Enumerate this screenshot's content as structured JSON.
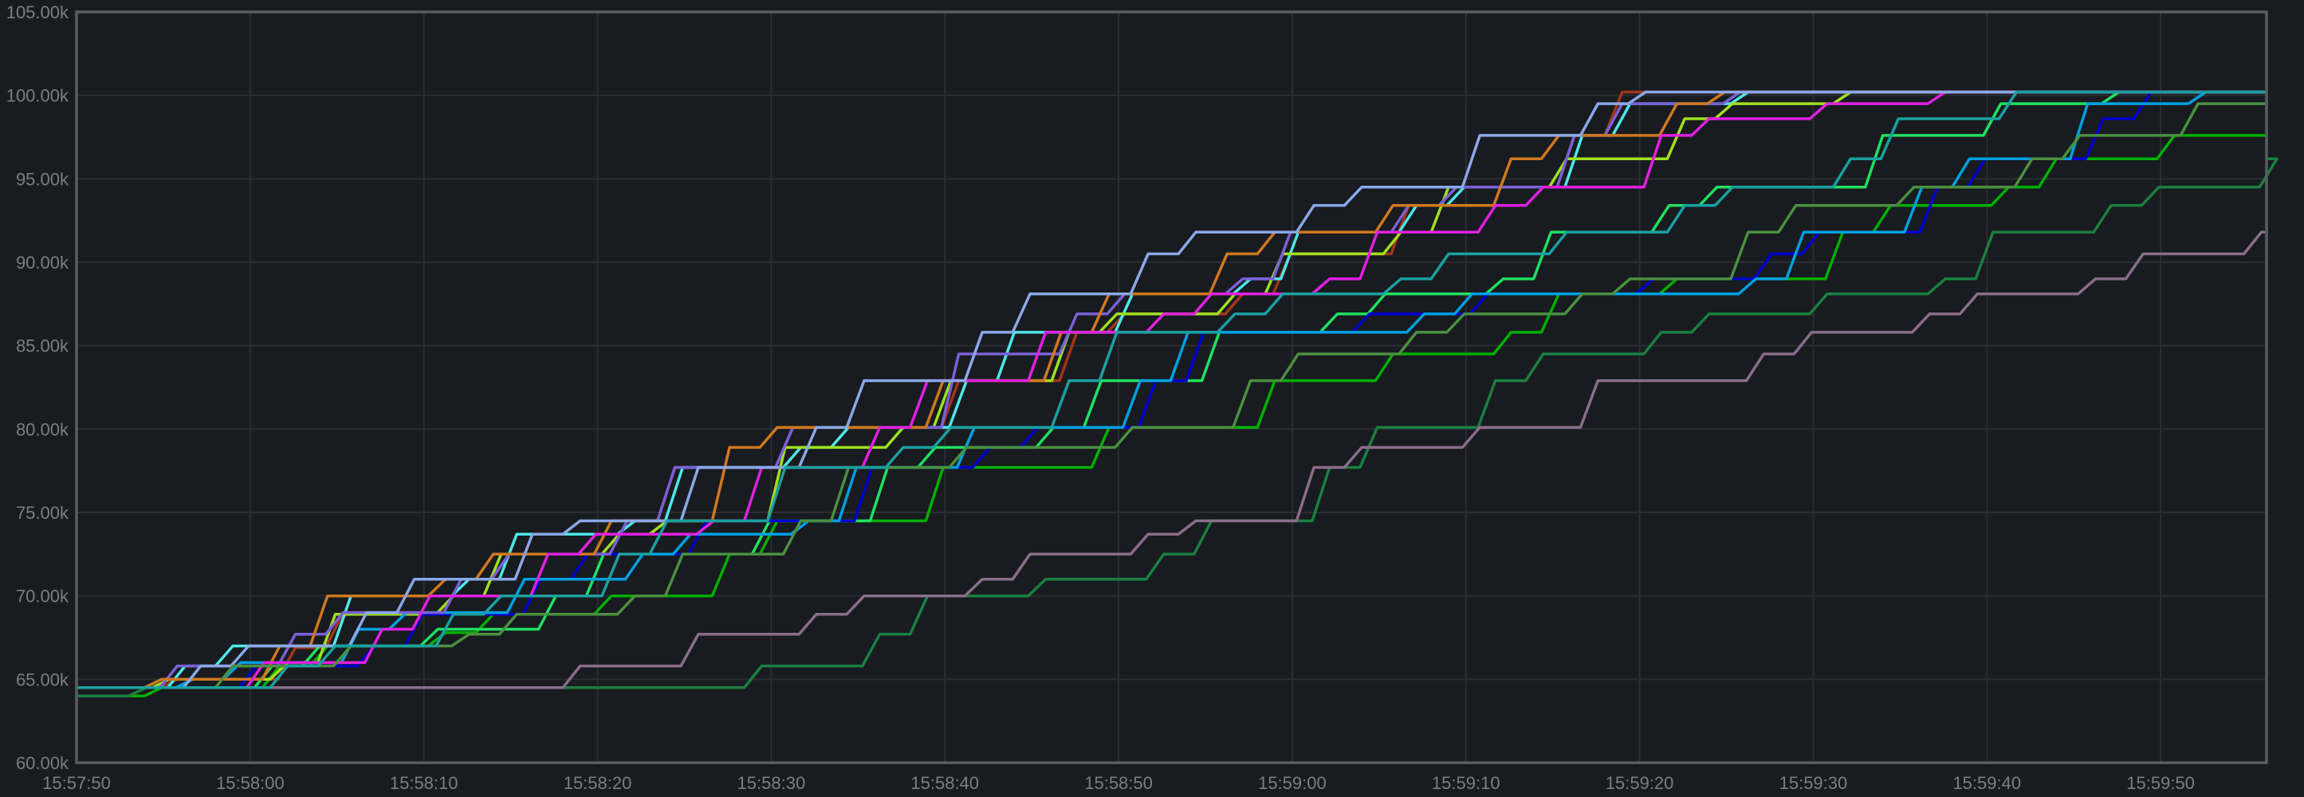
{
  "chart_data": {
    "type": "line",
    "title": "",
    "xlabel": "",
    "ylabel": "",
    "xlim": [
      "15:57:50",
      "15:59:56"
    ],
    "ylim": [
      60000,
      105000
    ],
    "grid": true,
    "legend": "none",
    "line_style": "stepped",
    "y_ticks": [
      "60.00k",
      "65.00k",
      "70.00k",
      "75.00k",
      "80.00k",
      "85.00k",
      "90.00k",
      "95.00k",
      "100.00k",
      "105.00k"
    ],
    "x_ticks": [
      "15:57:50",
      "15:58:00",
      "15:58:10",
      "15:58:20",
      "15:58:30",
      "15:58:40",
      "15:58:50",
      "15:59:00",
      "15:59:10",
      "15:59:20",
      "15:59:30",
      "15:59:40",
      "15:59:50"
    ],
    "x": [
      "15:57:50",
      "15:57:55",
      "15:58:00",
      "15:58:05",
      "15:58:10",
      "15:58:15",
      "15:58:20",
      "15:58:25",
      "15:58:30",
      "15:58:35",
      "15:58:40",
      "15:58:45",
      "15:58:50",
      "15:58:55",
      "15:59:00",
      "15:59:05",
      "15:59:10",
      "15:59:15",
      "15:59:20",
      "15:59:25",
      "15:59:30",
      "15:59:35",
      "15:59:40",
      "15:59:45",
      "15:59:50",
      "15:59:55"
    ],
    "series": [
      {
        "color": "#a0361c",
        "values": [
          64500,
          65000,
          66900,
          69000,
          71000,
          72500,
          74500,
          77700,
          80100,
          80100,
          82900,
          85800,
          86900,
          88100,
          90500,
          93400,
          94500,
          97600,
          100200,
          100200,
          100200,
          100200,
          100200,
          100200,
          100200,
          100200
        ]
      },
      {
        "color": "#00b000",
        "values": [
          64000,
          64500,
          65800,
          67000,
          67800,
          68900,
          70000,
          72500,
          74500,
          74500,
          77700,
          77700,
          80100,
          80100,
          82900,
          84500,
          85800,
          88100,
          89000,
          89000,
          91800,
          93400,
          94500,
          96200,
          97600,
          97600
        ]
      },
      {
        "color": "#1a8040",
        "values": [
          64000,
          64500,
          64500,
          64500,
          64500,
          64500,
          64500,
          64500,
          65800,
          67700,
          70000,
          71000,
          72500,
          74500,
          77700,
          80100,
          82900,
          84500,
          85800,
          86900,
          88100,
          89000,
          91800,
          93400,
          94500,
          96200
        ]
      },
      {
        "color": "#8a6d8a",
        "values": [
          64500,
          64500,
          64500,
          64500,
          64500,
          64500,
          65800,
          67700,
          68900,
          70000,
          71000,
          72500,
          73700,
          74500,
          77700,
          78900,
          80100,
          82900,
          82900,
          84500,
          85800,
          86900,
          88100,
          89000,
          90500,
          91800
        ]
      },
      {
        "color": "#4de8e8",
        "values": [
          64500,
          65800,
          67000,
          70000,
          71000,
          73700,
          74500,
          77700,
          78900,
          80100,
          82900,
          85800,
          88100,
          89000,
          91800,
          93400,
          94500,
          97600,
          99500,
          100200,
          100200,
          100200,
          100200,
          100200,
          100200,
          100200
        ]
      },
      {
        "color": "#a0e020",
        "values": [
          64500,
          65000,
          66000,
          68900,
          70000,
          72500,
          73700,
          74500,
          78900,
          80100,
          82900,
          85800,
          86900,
          88100,
          90500,
          91800,
          94500,
          96200,
          98600,
          99500,
          100200,
          100200,
          100200,
          100200,
          100200,
          100200
        ]
      },
      {
        "color": "#20e060",
        "values": [
          64500,
          64500,
          65800,
          67000,
          68000,
          70000,
          72500,
          72500,
          74500,
          77700,
          78900,
          80100,
          82900,
          85800,
          86900,
          88100,
          89000,
          91800,
          93400,
          94500,
          94500,
          97600,
          99500,
          100200,
          100200,
          100200
        ]
      },
      {
        "color": "#0000d0",
        "values": [
          64500,
          64500,
          65800,
          67000,
          68900,
          71000,
          72500,
          74500,
          74500,
          77700,
          78900,
          80100,
          82900,
          85800,
          85800,
          86900,
          88100,
          88100,
          89000,
          90500,
          91800,
          94500,
          96200,
          98600,
          100200,
          100200
        ]
      },
      {
        "color": "#00a0e0",
        "values": [
          64500,
          65000,
          66000,
          68000,
          69000,
          71000,
          72500,
          73700,
          74500,
          77700,
          80100,
          80100,
          82900,
          85800,
          85800,
          86900,
          88100,
          88100,
          88100,
          89000,
          91800,
          94500,
          96200,
          99500,
          100200,
          100200
        ]
      },
      {
        "color": "#7a60d8",
        "values": [
          64500,
          65800,
          67700,
          69000,
          71000,
          72500,
          74500,
          77700,
          80100,
          80100,
          84500,
          86900,
          88100,
          89000,
          91800,
          93400,
          94500,
          97600,
          99500,
          100200,
          100200,
          100200,
          100200,
          100200,
          100200,
          100200
        ]
      },
      {
        "color": "#d07820",
        "values": [
          64500,
          65000,
          67000,
          70000,
          71000,
          72500,
          74500,
          78900,
          80100,
          80100,
          82900,
          85800,
          88100,
          90500,
          91800,
          93400,
          96200,
          97600,
          99500,
          100200,
          100200,
          100200,
          100200,
          100200,
          100200,
          100200
        ]
      },
      {
        "color": "#e020e0",
        "values": [
          64500,
          64500,
          66000,
          68000,
          70000,
          72500,
          73700,
          74500,
          77700,
          80100,
          82900,
          85800,
          86900,
          88100,
          89000,
          91800,
          93400,
          94500,
          97600,
          98600,
          99500,
          100200,
          100200,
          100200,
          100200,
          100200
        ]
      },
      {
        "color": "#8aa8e8",
        "values": [
          64500,
          65800,
          67000,
          69000,
          71000,
          73700,
          74500,
          77700,
          80100,
          82900,
          85800,
          88100,
          90500,
          91800,
          93400,
          94500,
          97600,
          99500,
          100200,
          100200,
          100200,
          100200,
          100200,
          100200,
          100200,
          100200
        ]
      },
      {
        "color": "#4a9040",
        "values": [
          64500,
          64500,
          65800,
          67000,
          67700,
          68900,
          70000,
          72500,
          74500,
          77700,
          78900,
          78900,
          80100,
          82900,
          84500,
          85800,
          86900,
          88100,
          89000,
          91800,
          93400,
          94500,
          96200,
          97600,
          99500,
          99500
        ]
      },
      {
        "color": "#1aa0a0",
        "values": [
          64500,
          64500,
          65800,
          67000,
          68900,
          70000,
          72500,
          74500,
          77700,
          78900,
          80100,
          82900,
          85800,
          86900,
          88100,
          89000,
          90500,
          91800,
          93400,
          94500,
          96200,
          98600,
          100200,
          100200,
          100200,
          100200
        ]
      }
    ]
  },
  "colors": {
    "background": "#181b1f",
    "grid": "#2a2d32",
    "axis": "#5a5c60",
    "tick_text": "#7b7e83"
  }
}
